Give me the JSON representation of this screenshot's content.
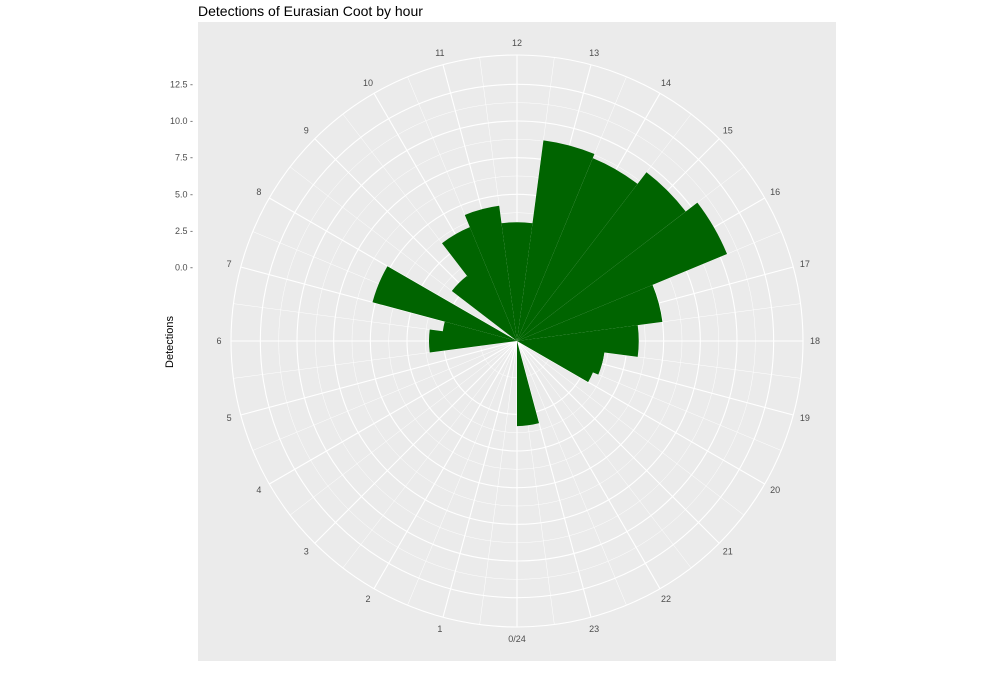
{
  "chart_data": {
    "type": "bar",
    "coord": "polar",
    "title": "Detections of Eurasian Coot by hour",
    "xlabel": "",
    "ylabel": "Detections",
    "x_tick_labels": [
      "0/24",
      "1",
      "2",
      "3",
      "4",
      "5",
      "6",
      "7",
      "8",
      "9",
      "10",
      "11",
      "12",
      "13",
      "14",
      "15",
      "16",
      "17",
      "18",
      "19",
      "20",
      "21",
      "22",
      "23"
    ],
    "y_ticks": [
      0.0,
      2.5,
      5.0,
      7.5,
      10.0,
      12.5
    ],
    "y_tick_labels": [
      "0.0",
      "2.5",
      "5.0",
      "7.5",
      "10.0",
      "12.5"
    ],
    "ylim": [
      -5,
      14.5
    ],
    "grid": true,
    "fill_color": "#006400",
    "panel_color": "#EBEBEB",
    "bars": [
      {
        "hour": 6.0,
        "value": 1.0
      },
      {
        "hour": 6.5,
        "value": 0.1
      },
      {
        "hour": 7.5,
        "value": 5.2
      },
      {
        "hour": 9.0,
        "value": 0.6
      },
      {
        "hour": 9.5,
        "value": 0.5
      },
      {
        "hour": 10.0,
        "value": 3.4
      },
      {
        "hour": 11.0,
        "value": 4.3
      },
      {
        "hour": 12.0,
        "value": 3.1
      },
      {
        "hour": 13.0,
        "value": 8.8
      },
      {
        "hour": 14.0,
        "value": 8.5
      },
      {
        "hour": 15.0,
        "value": 9.5
      },
      {
        "hour": 16.0,
        "value": 10.5
      },
      {
        "hour": 17.0,
        "value": 5.0
      },
      {
        "hour": 18.0,
        "value": 3.3
      },
      {
        "hour": 18.5,
        "value": 1.0
      },
      {
        "hour": 19.0,
        "value": 1.0
      },
      {
        "hour": 19.5,
        "value": 0.6
      },
      {
        "hour": 23.5,
        "value": 0.8
      }
    ]
  }
}
